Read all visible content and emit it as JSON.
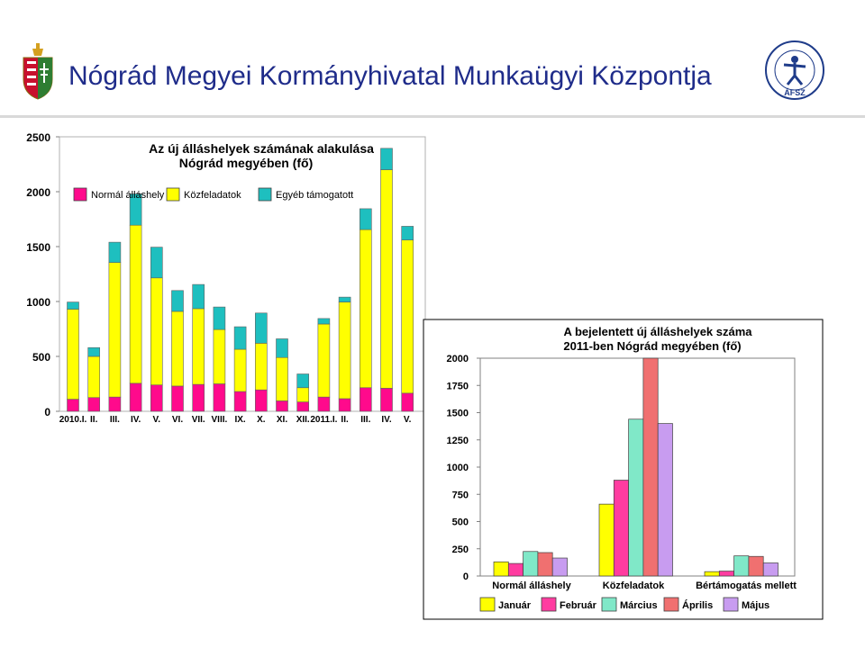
{
  "header": {
    "title": "Nógrád Megyei Kormányhivatal Munkaügyi Központja",
    "logo_text": "ÁFSZ"
  },
  "colors": {
    "title": "#1f2c8a",
    "magenta": "#ff0a8c",
    "yellow": "#ffff00",
    "teal": "#1ebfbf",
    "aqua": "#80e8c8",
    "salmon": "#f07070",
    "lavender": "#c89cf0"
  },
  "chart_data": [
    {
      "type": "bar",
      "stacked": true,
      "title": "Az új álláshelyek számának alakulása",
      "subtitle": "Nógrád megyében (fő)",
      "ylim": [
        0,
        2500
      ],
      "yticks": [
        "0",
        "500",
        "1000",
        "1500",
        "2000",
        "2500"
      ],
      "categories": [
        "2010.I.",
        "II.",
        "III.",
        "IV.",
        "V.",
        "VI.",
        "VII.",
        "VIII.",
        "IX.",
        "X.",
        "XI.",
        "XII.",
        "2011.I.",
        "II.",
        "III.",
        "IV.",
        "V."
      ],
      "series": [
        {
          "name": "Normál álláshely",
          "color": "#ff0a8c",
          "values": [
            110,
            125,
            130,
            255,
            240,
            230,
            245,
            250,
            180,
            195,
            95,
            85,
            130,
            115,
            215,
            210,
            165
          ]
        },
        {
          "name": "Közfeladatok",
          "color": "#ffff00",
          "values": [
            820,
            375,
            1225,
            1440,
            975,
            680,
            690,
            495,
            385,
            425,
            395,
            130,
            665,
            880,
            1440,
            1990,
            1395
          ]
        },
        {
          "name": "Egyéb támogatott",
          "color": "#1ebfbf",
          "values": [
            65,
            80,
            185,
            285,
            280,
            190,
            220,
            205,
            205,
            275,
            170,
            125,
            50,
            45,
            190,
            195,
            125
          ]
        }
      ],
      "legend": [
        "Normál álláshely",
        "Közfeladatok",
        "Egyéb támogatott"
      ],
      "legend_position": "top"
    },
    {
      "type": "bar",
      "title": "A bejelentett új álláshelyek száma",
      "subtitle": "2011-ben Nógrád megyében (fő)",
      "ylim": [
        0,
        2000
      ],
      "yticks": [
        "0",
        "250",
        "500",
        "750",
        "1000",
        "1250",
        "1500",
        "1750",
        "2000"
      ],
      "categories": [
        "Normál álláshely",
        "Közfeladatok",
        "Bértámogatás mellett"
      ],
      "series": [
        {
          "name": "Január",
          "color": "#ffff00",
          "values": [
            130,
            660,
            40
          ]
        },
        {
          "name": "Február",
          "color": "#ff3ca0",
          "values": [
            115,
            880,
            45
          ]
        },
        {
          "name": "Március",
          "color": "#80e8c8",
          "values": [
            225,
            1440,
            185
          ]
        },
        {
          "name": "Április",
          "color": "#f07070",
          "values": [
            215,
            2000,
            180
          ]
        },
        {
          "name": "Május",
          "color": "#c89cf0",
          "values": [
            165,
            1400,
            120
          ]
        }
      ],
      "legend": [
        "Január",
        "Február",
        "Március",
        "Április",
        "Május"
      ],
      "legend_position": "bottom"
    }
  ]
}
